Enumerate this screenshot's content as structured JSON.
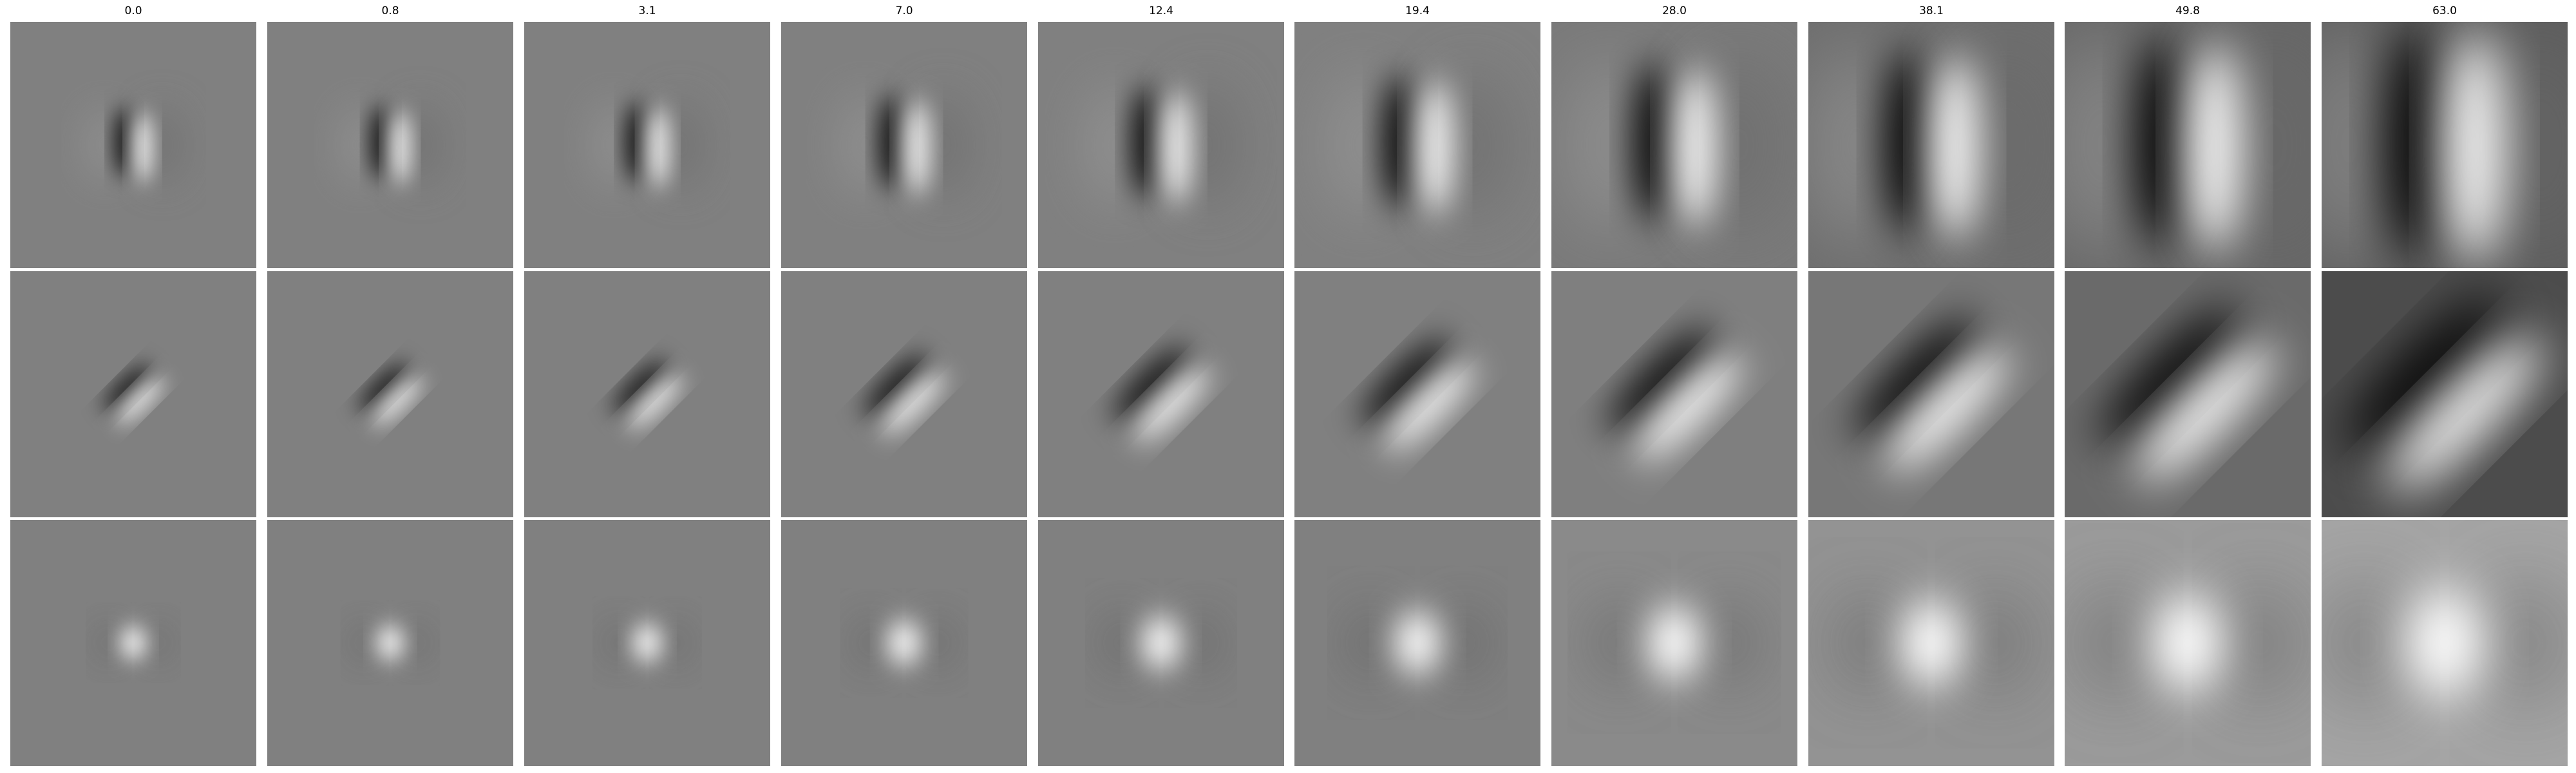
{
  "figure": {
    "column_titles": [
      "0.0",
      "0.8",
      "3.1",
      "7.0",
      "12.4",
      "19.4",
      "28.0",
      "38.1",
      "49.8",
      "63.0"
    ],
    "rows": [
      {
        "name": "row-1",
        "pattern": "vertical-dipole",
        "orientation_deg": 90
      },
      {
        "name": "row-2",
        "pattern": "diagonal-dipole",
        "orientation_deg": 45
      },
      {
        "name": "row-3",
        "pattern": "center-bright-blob",
        "orientation_deg": 90
      }
    ]
  }
}
